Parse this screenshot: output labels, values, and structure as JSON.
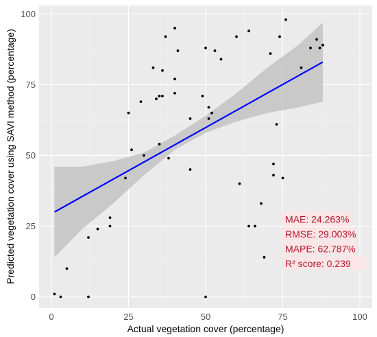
{
  "chart_data": {
    "type": "scatter",
    "title": "",
    "xlabel": "Actual vegetation cover (percentage)",
    "ylabel": "Predicted vegetation cover using SAVI method (percentage)",
    "xlim": [
      -4,
      104
    ],
    "ylim": [
      -4,
      103
    ],
    "xticks": [
      0,
      25,
      50,
      75,
      100
    ],
    "yticks": [
      0,
      25,
      50,
      75,
      100
    ],
    "grid": true,
    "colors": {
      "panel_bg": "#ebebeb",
      "grid_major": "#ffffff",
      "grid_minor": "#f5f5f5",
      "points": "#000000",
      "fit_line": "#0000ff",
      "confidence_band": "#bdbdbd",
      "metrics_text": "#b2182b",
      "metrics_bg": "#fbe5e7"
    },
    "points": [
      {
        "x": 1,
        "y": 1
      },
      {
        "x": 3,
        "y": 0
      },
      {
        "x": 5,
        "y": 10
      },
      {
        "x": 12,
        "y": 0
      },
      {
        "x": 12,
        "y": 21
      },
      {
        "x": 15,
        "y": 24
      },
      {
        "x": 19,
        "y": 25
      },
      {
        "x": 19,
        "y": 28
      },
      {
        "x": 24,
        "y": 42
      },
      {
        "x": 25,
        "y": 65
      },
      {
        "x": 26,
        "y": 52
      },
      {
        "x": 29,
        "y": 69
      },
      {
        "x": 30,
        "y": 50
      },
      {
        "x": 33,
        "y": 81
      },
      {
        "x": 34,
        "y": 70
      },
      {
        "x": 35,
        "y": 54
      },
      {
        "x": 35,
        "y": 71
      },
      {
        "x": 36,
        "y": 71
      },
      {
        "x": 36,
        "y": 80
      },
      {
        "x": 37,
        "y": 92
      },
      {
        "x": 38,
        "y": 49
      },
      {
        "x": 40,
        "y": 95
      },
      {
        "x": 40,
        "y": 77
      },
      {
        "x": 40,
        "y": 72
      },
      {
        "x": 41,
        "y": 87
      },
      {
        "x": 45,
        "y": 63
      },
      {
        "x": 45,
        "y": 45
      },
      {
        "x": 49,
        "y": 71
      },
      {
        "x": 50,
        "y": 88
      },
      {
        "x": 50,
        "y": 0
      },
      {
        "x": 51,
        "y": 67
      },
      {
        "x": 51,
        "y": 63
      },
      {
        "x": 52,
        "y": 65
      },
      {
        "x": 53,
        "y": 87
      },
      {
        "x": 55,
        "y": 84
      },
      {
        "x": 60,
        "y": 92
      },
      {
        "x": 61,
        "y": 40
      },
      {
        "x": 64,
        "y": 94
      },
      {
        "x": 64,
        "y": 25
      },
      {
        "x": 66,
        "y": 25
      },
      {
        "x": 68,
        "y": 33
      },
      {
        "x": 69,
        "y": 14
      },
      {
        "x": 71,
        "y": 86
      },
      {
        "x": 72,
        "y": 47
      },
      {
        "x": 72,
        "y": 43
      },
      {
        "x": 73,
        "y": 61
      },
      {
        "x": 74,
        "y": 92
      },
      {
        "x": 75,
        "y": 42
      },
      {
        "x": 76,
        "y": 98
      },
      {
        "x": 81,
        "y": 81
      },
      {
        "x": 84,
        "y": 88
      },
      {
        "x": 86,
        "y": 91
      },
      {
        "x": 87,
        "y": 88
      },
      {
        "x": 88,
        "y": 89
      }
    ],
    "fit_line": {
      "x": [
        1,
        88
      ],
      "y": [
        30,
        83
      ]
    },
    "confidence_band": {
      "x": [
        1,
        10,
        20,
        30,
        40,
        50,
        60,
        70,
        80,
        88
      ],
      "lower": [
        14,
        24,
        33,
        43,
        52,
        58,
        62,
        65,
        67,
        69
      ],
      "upper": [
        46,
        46,
        48,
        51,
        57,
        64,
        72,
        81,
        89,
        97
      ]
    },
    "annotations": [
      "MAE: 24.263%",
      "RMSE: 29.003%",
      "MAPE: 62.787%",
      "R² score: 0.239"
    ]
  }
}
